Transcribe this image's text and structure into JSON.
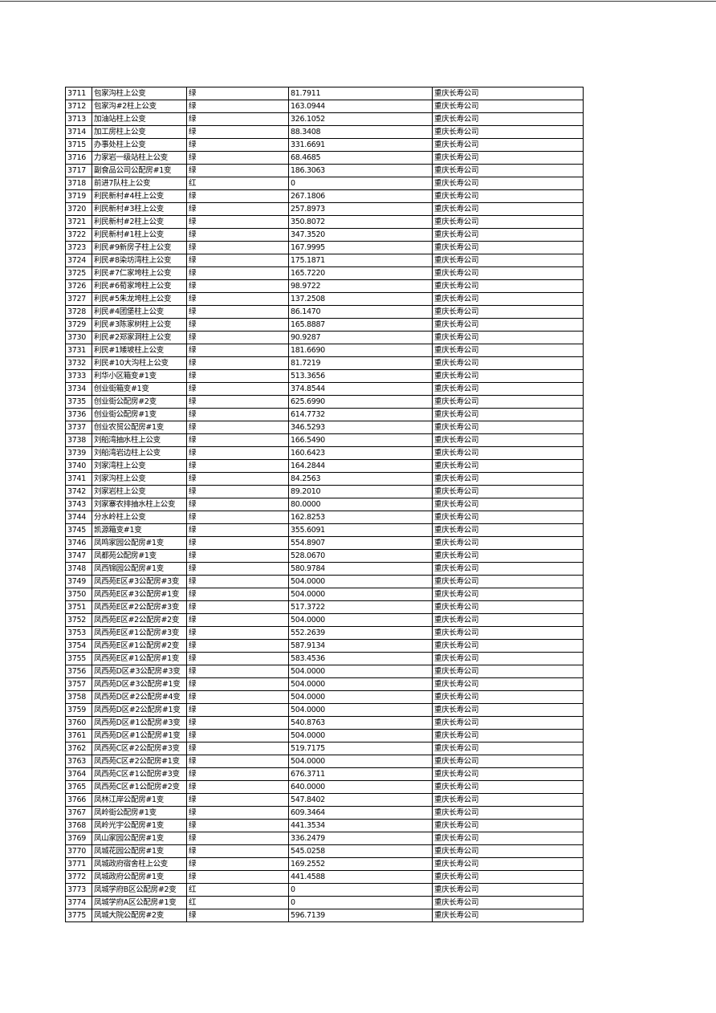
{
  "table": {
    "rows": [
      [
        "3711",
        "包家沟柱上公变",
        "绿",
        "81.7911",
        "重庆长寿公司"
      ],
      [
        "3712",
        "包家沟#2柱上公变",
        "绿",
        "163.0944",
        "重庆长寿公司"
      ],
      [
        "3713",
        "加油站柱上公变",
        "绿",
        "326.1052",
        "重庆长寿公司"
      ],
      [
        "3714",
        "加工房柱上公变",
        "绿",
        "88.3408",
        "重庆长寿公司"
      ],
      [
        "3715",
        "办事处柱上公变",
        "绿",
        "331.6691",
        "重庆长寿公司"
      ],
      [
        "3716",
        "力家岩一级站柱上公变",
        "绿",
        "68.4685",
        "重庆长寿公司"
      ],
      [
        "3717",
        "副食品公司公配房#1变",
        "绿",
        "186.3063",
        "重庆长寿公司"
      ],
      [
        "3718",
        "前进7队柱上公变",
        "红",
        "0",
        "重庆长寿公司"
      ],
      [
        "3719",
        "利民新村#4柱上公变",
        "绿",
        "267.1806",
        "重庆长寿公司"
      ],
      [
        "3720",
        "利民新村#3柱上公变",
        "绿",
        "257.8973",
        "重庆长寿公司"
      ],
      [
        "3721",
        "利民新村#2柱上公变",
        "绿",
        "350.8072",
        "重庆长寿公司"
      ],
      [
        "3722",
        "利民新村#1柱上公变",
        "绿",
        "347.3520",
        "重庆长寿公司"
      ],
      [
        "3723",
        "利民#9新房子柱上公变",
        "绿",
        "167.9995",
        "重庆长寿公司"
      ],
      [
        "3724",
        "利民#8染坊湾柱上公变",
        "绿",
        "175.1871",
        "重庆长寿公司"
      ],
      [
        "3725",
        "利民#7仁家垮柱上公变",
        "绿",
        "165.7220",
        "重庆长寿公司"
      ],
      [
        "3726",
        "利民#6荀家垮柱上公变",
        "绿",
        "98.9722",
        "重庆长寿公司"
      ],
      [
        "3727",
        "利民#5朱龙垮柱上公变",
        "绿",
        "137.2508",
        "重庆长寿公司"
      ],
      [
        "3728",
        "利民#4团堡柱上公变",
        "绿",
        "86.1470",
        "重庆长寿公司"
      ],
      [
        "3729",
        "利民#3陈家树柱上公变",
        "绿",
        "165.8887",
        "重庆长寿公司"
      ],
      [
        "3730",
        "利民#2郑家洞柱上公变",
        "绿",
        "90.9287",
        "重庆长寿公司"
      ],
      [
        "3731",
        "利民#1矮坡柱上公变",
        "绿",
        "181.6690",
        "重庆长寿公司"
      ],
      [
        "3732",
        "利民#10大沟柱上公变",
        "绿",
        "81.7219",
        "重庆长寿公司"
      ],
      [
        "3733",
        "利华小区箱变#1变",
        "绿",
        "513.3656",
        "重庆长寿公司"
      ],
      [
        "3734",
        "创业街箱变#1变",
        "绿",
        "374.8544",
        "重庆长寿公司"
      ],
      [
        "3735",
        "创业街公配房#2变",
        "绿",
        "625.6990",
        "重庆长寿公司"
      ],
      [
        "3736",
        "创业街公配房#1变",
        "绿",
        "614.7732",
        "重庆长寿公司"
      ],
      [
        "3737",
        "创业农贸公配房#1变",
        "绿",
        "346.5293",
        "重庆长寿公司"
      ],
      [
        "3738",
        "刘船湾抽水柱上公变",
        "绿",
        "166.5490",
        "重庆长寿公司"
      ],
      [
        "3739",
        "刘船湾岩边柱上公变",
        "绿",
        "160.6423",
        "重庆长寿公司"
      ],
      [
        "3740",
        "刘家湾柱上公变",
        "绿",
        "164.2844",
        "重庆长寿公司"
      ],
      [
        "3741",
        "刘家沟柱上公变",
        "绿",
        "84.2563",
        "重庆长寿公司"
      ],
      [
        "3742",
        "刘家岩柱上公变",
        "绿",
        "89.2010",
        "重庆长寿公司"
      ],
      [
        "3743",
        "刘家寨农排抽水柱上公变",
        "绿",
        "80.0000",
        "重庆长寿公司"
      ],
      [
        "3744",
        "分水岭柱上公变",
        "绿",
        "162.8253",
        "重庆长寿公司"
      ],
      [
        "3745",
        "凯源箱变#1变",
        "绿",
        "355.6091",
        "重庆长寿公司"
      ],
      [
        "3746",
        "凤鸣家园公配房#1变",
        "绿",
        "554.8907",
        "重庆长寿公司"
      ],
      [
        "3747",
        "凤都苑公配房#1变",
        "绿",
        "528.0670",
        "重庆长寿公司"
      ],
      [
        "3748",
        "凤西锦园公配房#1变",
        "绿",
        "580.9784",
        "重庆长寿公司"
      ],
      [
        "3749",
        "凤西苑E区#3公配房#3变",
        "绿",
        "504.0000",
        "重庆长寿公司"
      ],
      [
        "3750",
        "凤西苑E区#3公配房#1变",
        "绿",
        "504.0000",
        "重庆长寿公司"
      ],
      [
        "3751",
        "凤西苑E区#2公配房#3变",
        "绿",
        "517.3722",
        "重庆长寿公司"
      ],
      [
        "3752",
        "凤西苑E区#2公配房#2变",
        "绿",
        "504.0000",
        "重庆长寿公司"
      ],
      [
        "3753",
        "凤西苑E区#1公配房#3变",
        "绿",
        "552.2639",
        "重庆长寿公司"
      ],
      [
        "3754",
        "凤西苑E区#1公配房#2变",
        "绿",
        "587.9134",
        "重庆长寿公司"
      ],
      [
        "3755",
        "凤西苑E区#1公配房#1变",
        "绿",
        "583.4536",
        "重庆长寿公司"
      ],
      [
        "3756",
        "凤西苑D区#3公配房#3变",
        "绿",
        "504.0000",
        "重庆长寿公司"
      ],
      [
        "3757",
        "凤西苑D区#3公配房#1变",
        "绿",
        "504.0000",
        "重庆长寿公司"
      ],
      [
        "3758",
        "凤西苑D区#2公配房#4变",
        "绿",
        "504.0000",
        "重庆长寿公司"
      ],
      [
        "3759",
        "凤西苑D区#2公配房#1变",
        "绿",
        "504.0000",
        "重庆长寿公司"
      ],
      [
        "3760",
        "凤西苑D区#1公配房#3变",
        "绿",
        "540.8763",
        "重庆长寿公司"
      ],
      [
        "3761",
        "凤西苑D区#1公配房#1变",
        "绿",
        "504.0000",
        "重庆长寿公司"
      ],
      [
        "3762",
        "凤西苑C区#2公配房#3变",
        "绿",
        "519.7175",
        "重庆长寿公司"
      ],
      [
        "3763",
        "凤西苑C区#2公配房#1变",
        "绿",
        "504.0000",
        "重庆长寿公司"
      ],
      [
        "3764",
        "凤西苑C区#1公配房#3变",
        "绿",
        "676.3711",
        "重庆长寿公司"
      ],
      [
        "3765",
        "凤西苑C区#1公配房#2变",
        "绿",
        "640.0000",
        "重庆长寿公司"
      ],
      [
        "3766",
        "凤林江岸公配房#1变",
        "绿",
        "547.8402",
        "重庆长寿公司"
      ],
      [
        "3767",
        "凤岭街公配房#1变",
        "绿",
        "609.3464",
        "重庆长寿公司"
      ],
      [
        "3768",
        "凤岭光宇公配房#1变",
        "绿",
        "441.3534",
        "重庆长寿公司"
      ],
      [
        "3769",
        "凤山家园公配房#1变",
        "绿",
        "336.2479",
        "重庆长寿公司"
      ],
      [
        "3770",
        "凤城花园公配房#1变",
        "绿",
        "545.0258",
        "重庆长寿公司"
      ],
      [
        "3771",
        "凤城政府宿舍柱上公变",
        "绿",
        "169.2552",
        "重庆长寿公司"
      ],
      [
        "3772",
        "凤城政府公配房#1变",
        "绿",
        "441.4588",
        "重庆长寿公司"
      ],
      [
        "3773",
        "凤城学府B区公配房#2变",
        "红",
        "0",
        "重庆长寿公司"
      ],
      [
        "3774",
        "凤城学府A区公配房#1变",
        "红",
        "0",
        "重庆长寿公司"
      ],
      [
        "3775",
        "凤城大院公配房#2变",
        "绿",
        "596.7139",
        "重庆长寿公司"
      ]
    ]
  }
}
